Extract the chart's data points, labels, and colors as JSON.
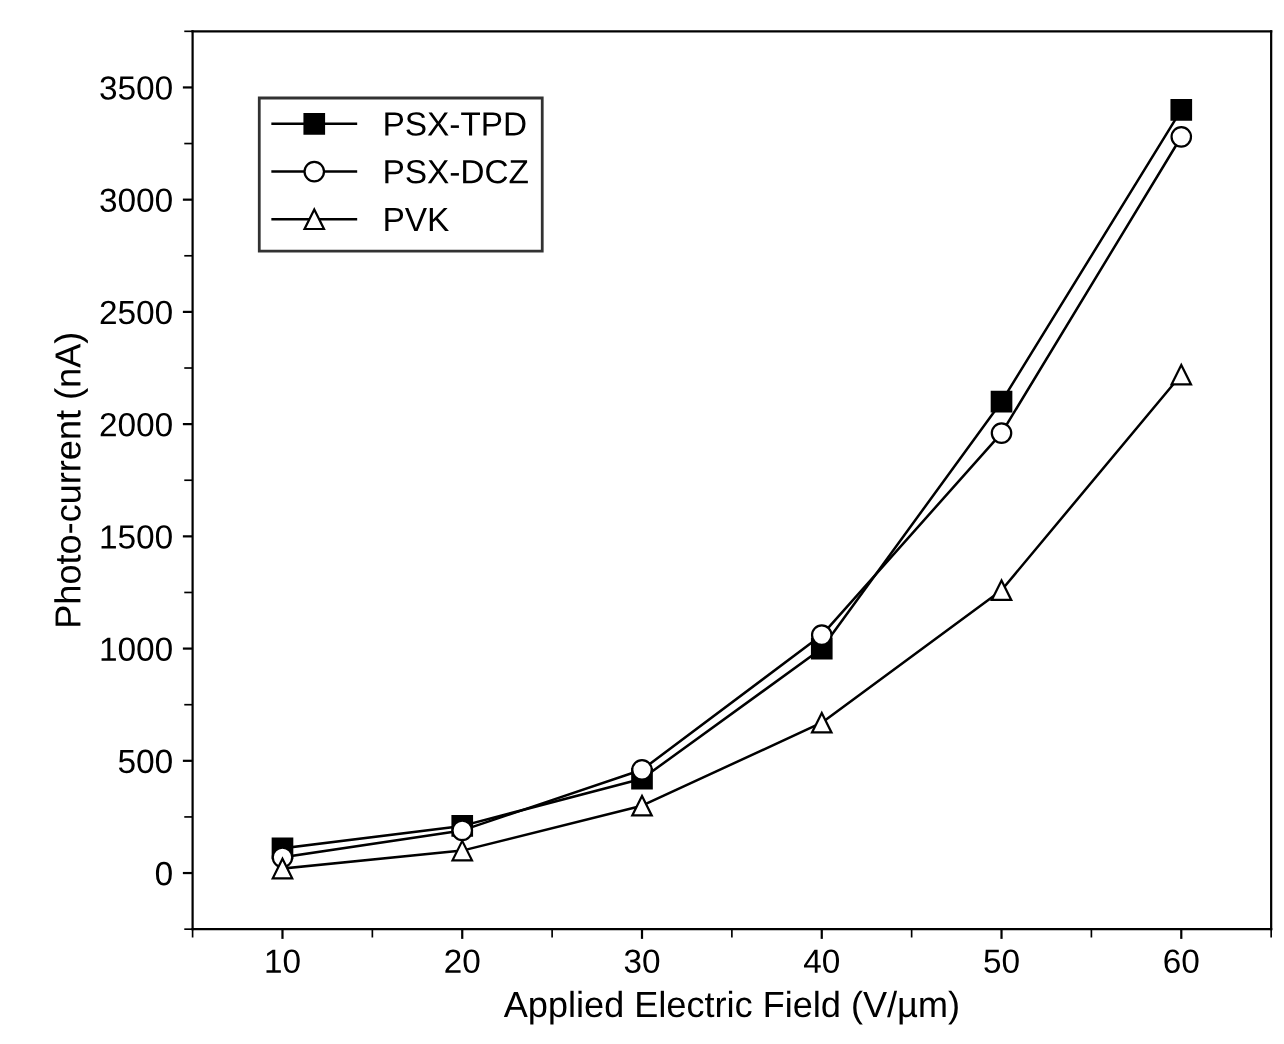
{
  "chart_data": {
    "type": "line",
    "xlabel": "Applied Electric Field (V/µm)",
    "ylabel": "Photo-current (nA)",
    "x": [
      10,
      20,
      30,
      40,
      50,
      60
    ],
    "series": [
      {
        "name": "PSX-TPD",
        "color": "#000000",
        "values": [
          110,
          210,
          420,
          1000,
          2100,
          3400
        ],
        "marker": "square"
      },
      {
        "name": "PSX-DCZ",
        "color": "#000000",
        "values": [
          70,
          190,
          460,
          1060,
          1960,
          3280
        ],
        "marker": "circle"
      },
      {
        "name": "PVK",
        "color": "#000000",
        "values": [
          20,
          100,
          300,
          670,
          1260,
          2220
        ],
        "marker": "triangle"
      }
    ],
    "xlim": [
      5,
      65
    ],
    "xticks": [
      10,
      20,
      30,
      40,
      50,
      60
    ],
    "ylim": [
      -250,
      3750
    ],
    "yticks": [
      0,
      500,
      1000,
      1500,
      2000,
      2500,
      3000,
      3500
    ],
    "grid": false,
    "legend": "top left",
    "line_style": "solid"
  }
}
